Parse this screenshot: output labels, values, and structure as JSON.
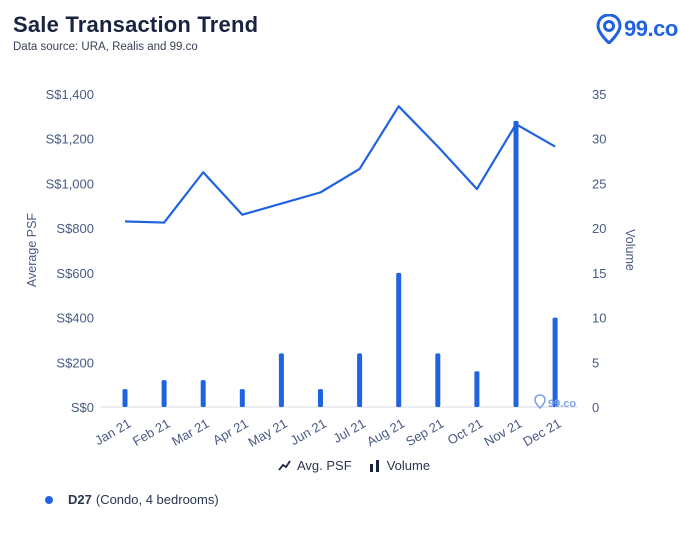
{
  "header": {
    "title": "Sale Transaction Trend",
    "subtitle": "Data source: URA, Realis and 99.co",
    "logo_text": "99.co"
  },
  "watermark": {
    "text": "99.co"
  },
  "legend": {
    "line_label": "Avg. PSF",
    "bar_label": "Volume"
  },
  "footer": {
    "district": "D27",
    "description": "(Condo, 4 bedrooms)"
  },
  "colors": {
    "accent": "#1f63e0",
    "axis_text": "#4a5a84",
    "grid": "#c9d1e3"
  },
  "chart_data": {
    "type": "bar+line",
    "categories": [
      "Jan 21",
      "Feb 21",
      "Mar 21",
      "Apr 21",
      "May 21",
      "Jun 21",
      "Jul 21",
      "Aug 21",
      "Sep 21",
      "Oct 21",
      "Nov 21",
      "Dec 21"
    ],
    "series": [
      {
        "name": "Avg. PSF",
        "type": "line",
        "axis": "left",
        "values": [
          830,
          825,
          1050,
          860,
          910,
          960,
          1065,
          1345,
          1165,
          975,
          1265,
          1165
        ]
      },
      {
        "name": "Volume",
        "type": "bar",
        "axis": "right",
        "values": [
          2,
          3,
          3,
          2,
          6,
          2,
          6,
          15,
          6,
          4,
          32,
          10
        ]
      }
    ],
    "ylabel": "Average PSF",
    "y2label": "Volume",
    "ylim": [
      0,
      1400
    ],
    "y2lim": [
      0,
      35
    ],
    "yticks": [
      0,
      200,
      400,
      600,
      800,
      1000,
      1200,
      1400
    ],
    "ytick_labels": [
      "S$0",
      "S$200",
      "S$400",
      "S$600",
      "S$800",
      "S$1,000",
      "S$1,200",
      "S$1,400"
    ],
    "y2ticks": [
      0,
      5,
      10,
      15,
      20,
      25,
      30,
      35
    ],
    "grid": false,
    "legend_position": "bottom"
  }
}
